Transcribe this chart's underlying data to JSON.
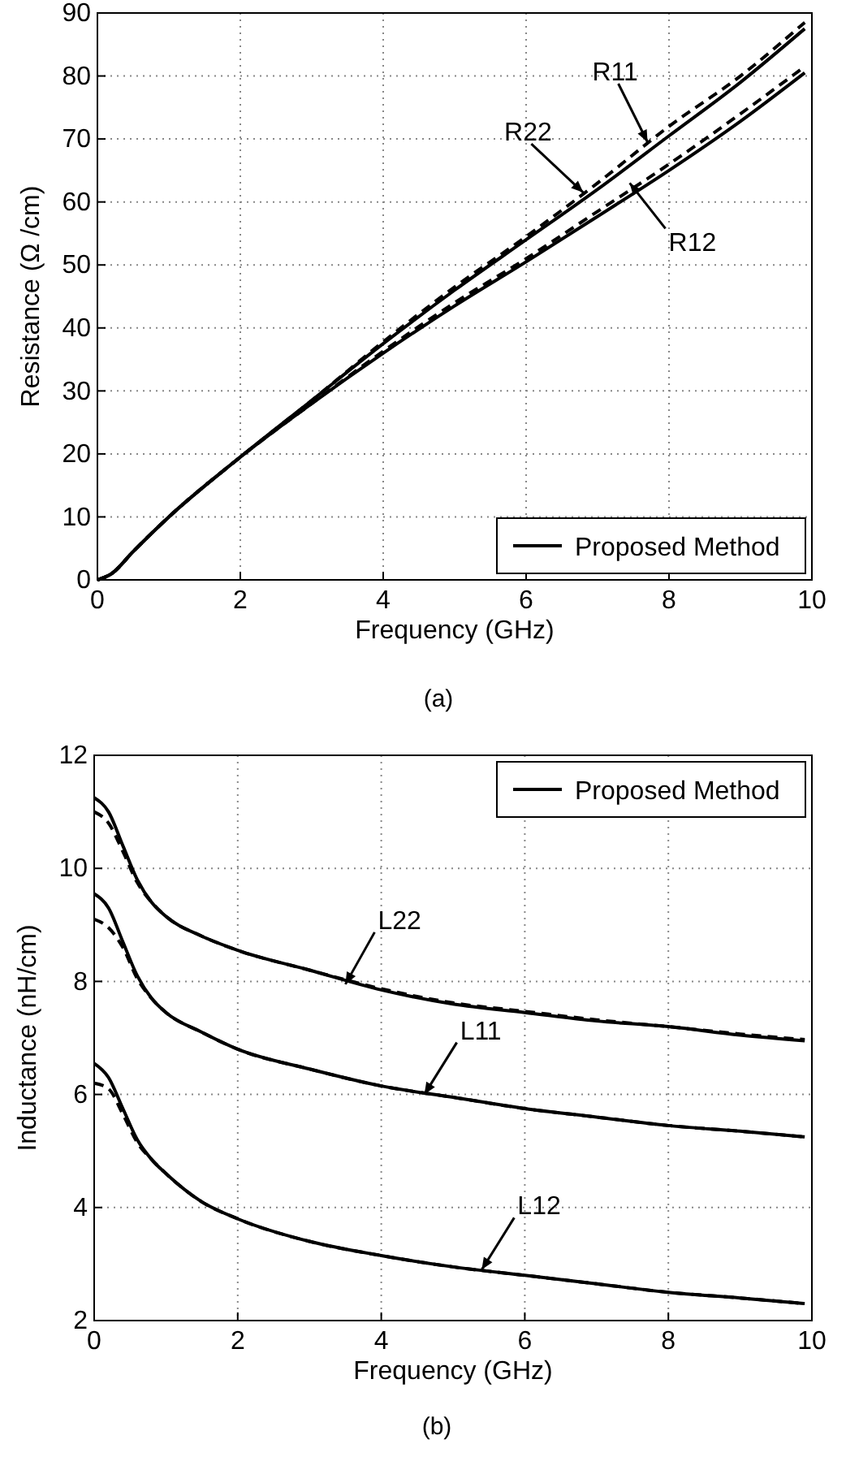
{
  "chart_data": [
    {
      "type": "line",
      "xlabel": "Frequency (GHz)",
      "ylabel": "Resistance (Ω /cm)",
      "xlim": [
        0,
        10
      ],
      "ylim": [
        0,
        90
      ],
      "xticks": [
        0,
        2,
        4,
        6,
        8,
        10
      ],
      "yticks": [
        0,
        10,
        20,
        30,
        40,
        50,
        60,
        70,
        80,
        90
      ],
      "grid": true,
      "legend": "bottom right",
      "x": [
        0,
        0.2,
        0.5,
        1,
        2,
        3,
        4,
        5,
        6,
        7,
        8,
        9,
        9.9
      ],
      "series": [
        {
          "name": "Proposed Method",
          "color": "#000000",
          "line_style": "solid",
          "values": [
            0,
            1,
            4.5,
            10,
            19.5,
            28.5,
            37.5,
            46,
            54,
            62,
            70.5,
            79,
            87.5
          ]
        },
        {
          "color": "#000000",
          "line_style": "dashed",
          "values": [
            0,
            1,
            4.5,
            10,
            19.5,
            28.5,
            37.8,
            46.5,
            54.5,
            63,
            72,
            80,
            88.5
          ]
        },
        {
          "color": "#000000",
          "line_style": "solid",
          "values": [
            0,
            1,
            4.5,
            10,
            19.5,
            28,
            36,
            43.5,
            50.5,
            57.7,
            65,
            72.8,
            80.5
          ]
        },
        {
          "color": "#000000",
          "line_style": "dashed",
          "values": [
            0,
            1,
            4.5,
            10,
            19.5,
            28,
            36.3,
            44,
            51,
            58.5,
            66,
            74,
            81.5
          ]
        }
      ],
      "annotations": [
        {
          "text": "R11",
          "x": 7.7,
          "y": 69.5
        },
        {
          "text": "R22",
          "x": 6.8,
          "y": 61.5
        },
        {
          "text": "R12",
          "x": 7.45,
          "y": 63
        },
        "(a)"
      ]
    },
    {
      "type": "line",
      "xlabel": "Frequency (GHz)",
      "ylabel": "Inductance (nH/cm)",
      "xlim": [
        0,
        10
      ],
      "ylim": [
        2,
        12
      ],
      "xticks": [
        0,
        2,
        4,
        6,
        8,
        10
      ],
      "yticks": [
        2,
        4,
        6,
        8,
        10,
        12
      ],
      "grid": true,
      "legend": "top right",
      "x": [
        0,
        0.2,
        0.4,
        0.6,
        0.8,
        1,
        1.5,
        2,
        3,
        4,
        5,
        6,
        7,
        8,
        9,
        9.9
      ],
      "series": [
        {
          "name": "Proposed Method",
          "color": "#000000",
          "line_style": "solid",
          "values": [
            11.25,
            11,
            10.4,
            9.8,
            9.4,
            9.15,
            8.8,
            8.55,
            8.2,
            7.85,
            7.6,
            7.45,
            7.3,
            7.2,
            7.05,
            6.95
          ]
        },
        {
          "color": "#000000",
          "line_style": "dashed",
          "values": [
            11,
            10.8,
            10.3,
            9.75,
            9.4,
            9.15,
            8.8,
            8.55,
            8.2,
            7.87,
            7.62,
            7.47,
            7.32,
            7.2,
            7.07,
            6.97
          ]
        },
        {
          "color": "#000000",
          "line_style": "solid",
          "values": [
            9.55,
            9.3,
            8.7,
            8.1,
            7.7,
            7.45,
            7.1,
            6.8,
            6.45,
            6.15,
            5.95,
            5.75,
            5.6,
            5.45,
            5.35,
            5.25
          ]
        },
        {
          "color": "#000000",
          "line_style": "dashed",
          "values": [
            9.1,
            8.95,
            8.6,
            8.05,
            7.7,
            7.45,
            7.1,
            6.8,
            6.45,
            6.15,
            5.95,
            5.75,
            5.6,
            5.45,
            5.35,
            5.25
          ]
        },
        {
          "color": "#000000",
          "line_style": "solid",
          "values": [
            6.55,
            6.3,
            5.75,
            5.2,
            4.85,
            4.6,
            4.1,
            3.8,
            3.4,
            3.15,
            2.95,
            2.8,
            2.65,
            2.5,
            2.4,
            2.3
          ]
        },
        {
          "color": "#000000",
          "line_style": "dashed",
          "values": [
            6.2,
            6.1,
            5.65,
            5.15,
            4.85,
            4.6,
            4.1,
            3.8,
            3.4,
            3.15,
            2.95,
            2.8,
            2.65,
            2.5,
            2.4,
            2.3
          ]
        }
      ],
      "annotations": [
        {
          "text": "L22",
          "x": 3.5,
          "y": 7.95
        },
        {
          "text": "L11",
          "x": 4.6,
          "y": 6
        },
        {
          "text": "L12",
          "x": 5.4,
          "y": 2.9
        },
        "(b)"
      ]
    }
  ]
}
